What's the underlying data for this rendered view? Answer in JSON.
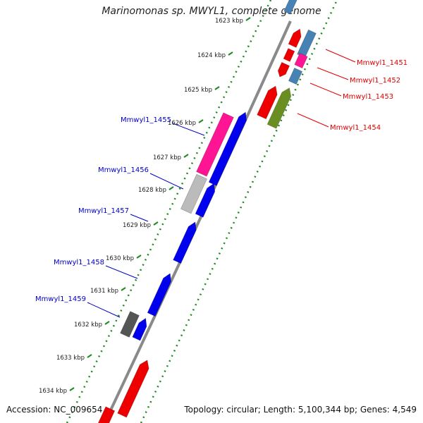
{
  "title": "Marinomonas sp. MWYL1, complete genome",
  "accession": "Accession: NC_009654",
  "summary": "Topology: circular; Length: 5,100,344 bp; Genes: 4,549",
  "colors": {
    "backbone": "#8a8a8a",
    "scale_dots": "#1e8a1e",
    "label_left": "#0000c8",
    "label_right": "#e00000",
    "cds_blue": "#0000ee",
    "cds_red": "#ee0000",
    "cds_pink": "#ff1493",
    "cds_steel": "#4682b4",
    "cds_olive": "#6b8e23",
    "cds_grey": "#bbbbbb",
    "cds_darkgrey": "#555555"
  },
  "ticks": [
    {
      "label": "1623 kbp"
    },
    {
      "label": "1624 kbp"
    },
    {
      "label": "1625 kbp"
    },
    {
      "label": "1626 kbp"
    },
    {
      "label": "1627 kbp"
    },
    {
      "label": "1628 kbp"
    },
    {
      "label": "1629 kbp"
    },
    {
      "label": "1630 kbp"
    },
    {
      "label": "1631 kbp"
    },
    {
      "label": "1632 kbp"
    },
    {
      "label": "1633 kbp"
    },
    {
      "label": "1634 kbp"
    }
  ],
  "genes_left": [
    {
      "name": "Mmwyl1_1455"
    },
    {
      "name": "Mmwyl1_1456"
    },
    {
      "name": "Mmwyl1_1457"
    },
    {
      "name": "Mmwyl1_1458"
    },
    {
      "name": "Mmwyl1_1459"
    }
  ],
  "genes_right": [
    {
      "name": "Mmwyl1_1451"
    },
    {
      "name": "Mmwyl1_1452"
    },
    {
      "name": "Mmwyl1_1453"
    },
    {
      "name": "Mmwyl1_1454"
    }
  ]
}
